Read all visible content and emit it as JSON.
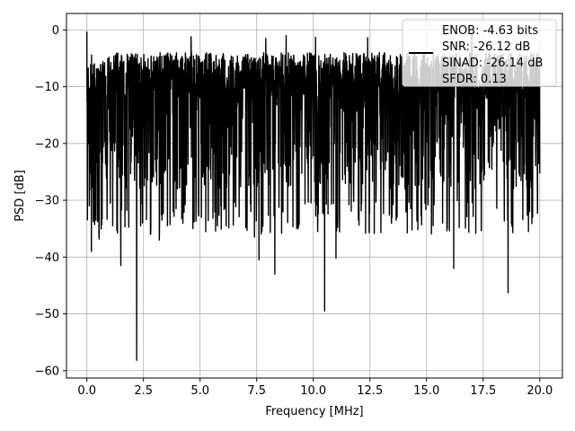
{
  "chart_data": {
    "type": "line",
    "title": "",
    "xlabel": "Frequency [MHz]",
    "ylabel": "PSD [dB]",
    "xlim": [
      -0.9,
      21.0
    ],
    "ylim": [
      -61.3,
      2.9
    ],
    "xticks": [
      0.0,
      2.5,
      5.0,
      7.5,
      10.0,
      12.5,
      15.0,
      17.5,
      20.0
    ],
    "xtick_labels": [
      "0.0",
      "2.5",
      "5.0",
      "7.5",
      "10.0",
      "12.5",
      "15.0",
      "17.5",
      "20.0"
    ],
    "yticks": [
      0,
      -10,
      -20,
      -30,
      -40,
      -50,
      -60
    ],
    "ytick_labels": [
      "0",
      "−10",
      "−20",
      "−30",
      "−40",
      "−50",
      "−60"
    ],
    "grid": true,
    "legend": {
      "placement": "top-right",
      "entries": [
        "ENOB: -4.63 bits",
        "SNR: -26.12 dB",
        "SINAD: -26.14 dB",
        "SFDR: 0.13"
      ],
      "line_entry_index": 1
    },
    "series": [
      {
        "color": "#000000",
        "description": "dense noise-like PSD trace",
        "x_range": [
          0.0,
          20.0
        ],
        "typical_band": [
          -28,
          -4
        ],
        "start_peak": {
          "x": 0.0,
          "y": -0.3
        },
        "deep_dips": [
          {
            "x": 0.2,
            "y": -39
          },
          {
            "x": 1.5,
            "y": -41.5
          },
          {
            "x": 2.2,
            "y": -58.2
          },
          {
            "x": 3.2,
            "y": -37
          },
          {
            "x": 7.6,
            "y": -40.5
          },
          {
            "x": 8.3,
            "y": -43
          },
          {
            "x": 7.4,
            "y": -36.5
          },
          {
            "x": 10.5,
            "y": -49.5
          },
          {
            "x": 11.0,
            "y": -40.2
          },
          {
            "x": 16.2,
            "y": -42
          },
          {
            "x": 18.6,
            "y": -46.3
          },
          {
            "x": 17.0,
            "y": -37.5
          },
          {
            "x": 19.5,
            "y": -35.5
          }
        ],
        "peaks": [
          {
            "x": 4.6,
            "y": -1.2
          },
          {
            "x": 7.9,
            "y": -1.5
          },
          {
            "x": 8.8,
            "y": -1.0
          },
          {
            "x": 10.1,
            "y": -1.3
          },
          {
            "x": 12.4,
            "y": -1.4
          },
          {
            "x": 17.0,
            "y": -0.5
          }
        ]
      }
    ],
    "colors": {
      "line": "#000000",
      "grid": "#b0b0b0",
      "legend_border": "#cccccc"
    }
  }
}
